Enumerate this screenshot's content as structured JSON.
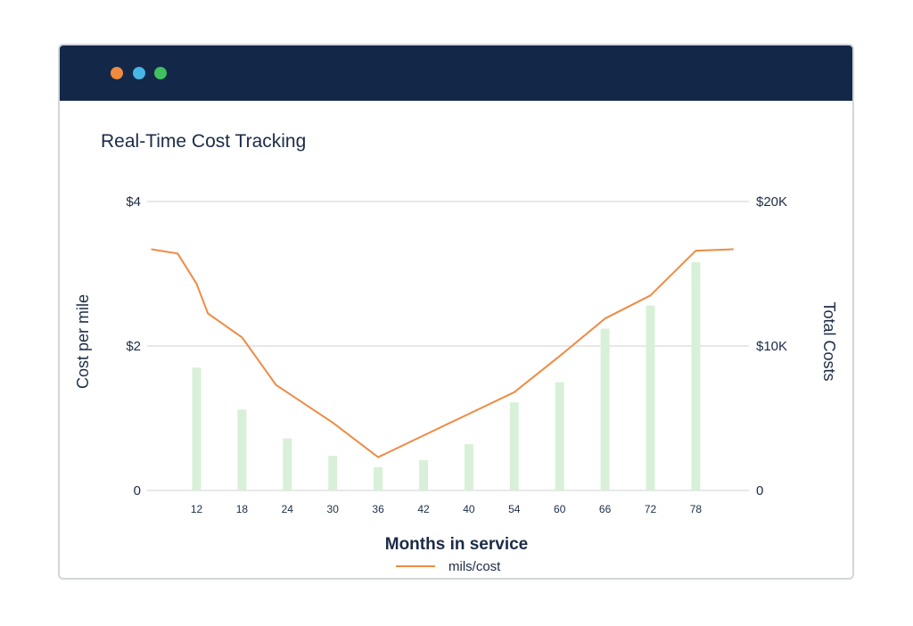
{
  "window": {
    "dots": [
      {
        "name": "close",
        "color": "#f08a3e"
      },
      {
        "name": "minimize",
        "color": "#46b6e6"
      },
      {
        "name": "maximize",
        "color": "#3fc15e"
      }
    ]
  },
  "colors": {
    "titlebar": "#132849",
    "line": "#ee8b45",
    "bars": "#d8f0d8",
    "grid": "#cfd2d6",
    "text": "#1c2b46"
  },
  "chart_data": {
    "type": "bar+line",
    "title": "Real-Time Cost Tracking",
    "xlabel": "Months in service",
    "ylabel_left": "Cost per mile",
    "ylabel_right": "Total Costs",
    "categories": [
      "12",
      "18",
      "24",
      "30",
      "36",
      "42",
      "40",
      "54",
      "60",
      "66",
      "72",
      "78"
    ],
    "left_axis": {
      "range": [
        0,
        4
      ],
      "ticks": [
        {
          "value": 0,
          "label": "0"
        },
        {
          "value": 2,
          "label": "$2"
        },
        {
          "value": 4,
          "label": "$4"
        }
      ]
    },
    "right_axis": {
      "range": [
        0,
        20000
      ],
      "ticks": [
        {
          "value": 0,
          "label": "0"
        },
        {
          "value": 10000,
          "label": "$10K"
        },
        {
          "value": 20000,
          "label": "$20K"
        }
      ]
    },
    "bars": {
      "name": "Total Costs",
      "axis": "right",
      "values": [
        8500,
        5600,
        3600,
        2400,
        1600,
        2100,
        3200,
        6100,
        7500,
        11200,
        12800,
        15800
      ]
    },
    "line": {
      "name": "mils/cost",
      "axis": "left",
      "x": [
        6,
        9.5,
        12,
        13.5,
        18,
        22.5,
        30,
        36,
        42,
        48,
        54,
        60,
        66,
        72,
        78,
        83
      ],
      "y": [
        3.34,
        3.28,
        2.86,
        2.45,
        2.12,
        1.46,
        0.94,
        0.46,
        0.76,
        1.06,
        1.36,
        1.86,
        2.38,
        2.7,
        3.32,
        3.34
      ]
    },
    "legend": [
      {
        "label": "mils/cost",
        "type": "line"
      }
    ],
    "legend_position": "bottom-center"
  }
}
